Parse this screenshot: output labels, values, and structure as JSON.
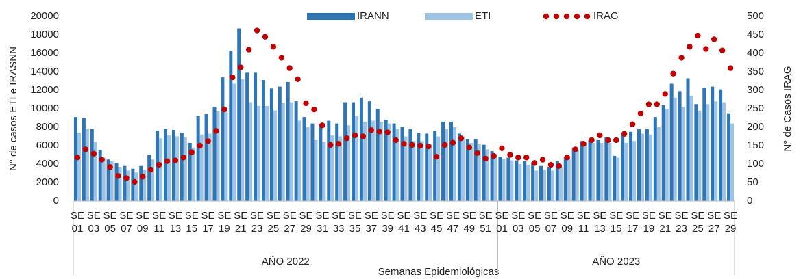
{
  "chart_data": {
    "type": "bar",
    "y_label": "N° de casos ETI e IRASNN",
    "y2_label": "N° de Casos IRAG",
    "x_label": "Semanas Epidemiológicas",
    "categories": [
      "SE 01",
      null,
      "SE 03",
      null,
      "SE 05",
      null,
      "SE 07",
      null,
      "SE 09",
      null,
      "SE 11",
      null,
      "SE 13",
      null,
      "SE 15",
      null,
      "SE 17",
      null,
      "SE 19",
      null,
      "SE 21",
      null,
      "SE 23",
      null,
      "SE 25",
      null,
      "SE 27",
      null,
      "SE 29",
      null,
      "SE 31",
      null,
      "SE 33",
      null,
      "SE 35",
      null,
      "SE 37",
      null,
      "SE 39",
      null,
      "SE 41",
      null,
      "SE 43",
      null,
      "SE 45",
      null,
      "SE 47",
      null,
      "SE 49",
      null,
      "SE 51",
      null,
      "SE 01",
      null,
      "SE 03",
      null,
      "SE 05",
      null,
      "SE 07",
      null,
      "SE 09",
      null,
      "SE 11",
      null,
      "SE 13",
      null,
      "SE 15",
      null,
      "SE 17",
      null,
      "SE 19",
      null,
      "SE 21",
      null,
      "SE 23",
      null,
      "SE 25",
      null,
      "SE 27",
      null,
      "SE 29"
    ],
    "groups": [
      {
        "label": "AÑO 2022",
        "count": 52
      },
      {
        "label": "AÑO 2023",
        "count": 29
      }
    ],
    "series": [
      {
        "name": "IRANN",
        "type": "bar",
        "color": "#2e75b6",
        "values": [
          9100,
          9000,
          7800,
          5500,
          4500,
          4100,
          3800,
          3500,
          3800,
          5000,
          7600,
          7800,
          7700,
          7400,
          6300,
          9200,
          9400,
          10200,
          13400,
          16300,
          18700,
          13900,
          13900,
          13100,
          12200,
          12400,
          12900,
          10800,
          9100,
          8400,
          8300,
          8700,
          8400,
          10700,
          10700,
          11200,
          10800,
          10000,
          8800,
          8400,
          8000,
          7800,
          7400,
          7300,
          7600,
          8600,
          8600,
          7300,
          6700,
          6700,
          6100,
          5400,
          4800,
          4700,
          4400,
          4300,
          4200,
          3800,
          3700,
          4300,
          4800,
          5800,
          6500,
          6600,
          6600,
          6900,
          4900,
          7200,
          7500,
          7800,
          7800,
          9100,
          10400,
          12700,
          11900,
          13300,
          10500,
          12300,
          12400,
          12100,
          9500
        ]
      },
      {
        "name": "ETI",
        "type": "bar",
        "color": "#9dc3e6",
        "values": [
          7400,
          7800,
          6400,
          4700,
          4300,
          3700,
          3300,
          3100,
          3400,
          4500,
          6800,
          7100,
          7000,
          6900,
          5800,
          7200,
          7300,
          9700,
          9700,
          12700,
          13200,
          10700,
          10300,
          10300,
          9800,
          10600,
          10700,
          8700,
          8000,
          6600,
          6400,
          7100,
          7000,
          8200,
          9200,
          8600,
          8700,
          8600,
          8400,
          7800,
          7000,
          6500,
          6500,
          6200,
          7000,
          7800,
          8000,
          7000,
          6300,
          6200,
          5600,
          5100,
          4600,
          4400,
          4000,
          3900,
          3300,
          3400,
          3300,
          3700,
          4600,
          5600,
          6100,
          6300,
          6300,
          6300,
          4700,
          6300,
          6500,
          7300,
          7200,
          8000,
          10000,
          11200,
          10200,
          11400,
          9800,
          10500,
          10800,
          10700,
          8400
        ]
      },
      {
        "name": "IRAG",
        "type": "scatter",
        "axis": "y2",
        "color": "#c00000",
        "values": [
          118,
          140,
          128,
          112,
          92,
          68,
          62,
          52,
          66,
          85,
          98,
          108,
          110,
          118,
          132,
          150,
          162,
          190,
          248,
          335,
          362,
          410,
          462,
          445,
          418,
          388,
          360,
          330,
          265,
          248,
          205,
          152,
          155,
          170,
          178,
          175,
          192,
          188,
          186,
          165,
          155,
          152,
          150,
          148,
          120,
          152,
          158,
          170,
          145,
          130,
          115,
          122,
          143,
          125,
          118,
          118,
          103,
          112,
          98,
          95,
          118,
          140,
          155,
          165,
          178,
          165,
          165,
          182,
          208,
          237,
          262,
          262,
          290,
          345,
          388,
          418,
          448,
          412,
          438,
          408,
          360
        ]
      }
    ],
    "ylim": [
      0,
      20000
    ],
    "yticks": [
      0,
      2000,
      4000,
      6000,
      8000,
      10000,
      12000,
      14000,
      16000,
      18000,
      20000
    ],
    "y2lim": [
      0,
      500
    ],
    "y2ticks": [
      0,
      50,
      100,
      150,
      200,
      250,
      300,
      350,
      400,
      450,
      500
    ],
    "grid": false
  }
}
